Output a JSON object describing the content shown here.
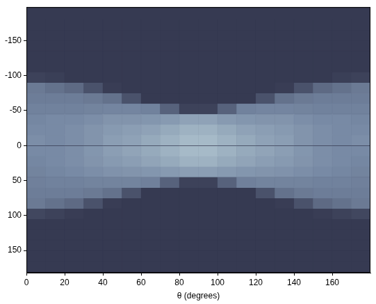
{
  "chart_data": {
    "type": "heatmap",
    "xlabel": "θ (degrees)",
    "xlim": [
      0,
      180
    ],
    "ylim": [
      182,
      -198
    ],
    "xticks": [
      0,
      20,
      40,
      60,
      80,
      100,
      120,
      140,
      160
    ],
    "yticks": [
      -150,
      -100,
      -50,
      0,
      50,
      100,
      150
    ],
    "grid": false,
    "zlim": [
      0,
      1
    ],
    "x_edges": [
      0,
      10,
      20,
      30,
      40,
      50,
      60,
      70,
      80,
      90,
      100,
      110,
      120,
      130,
      140,
      150,
      160,
      170,
      180
    ],
    "y_edges": [
      -180,
      -165,
      -150,
      -135,
      -120,
      -105,
      -90,
      -75,
      -60,
      -45,
      -30,
      -15,
      0,
      15,
      30,
      45,
      60,
      75,
      90,
      105,
      120,
      135,
      150,
      165,
      180
    ],
    "z": [
      [
        0,
        0,
        0,
        0,
        0,
        0,
        0,
        0,
        0,
        0,
        0,
        0,
        0,
        0,
        0,
        0,
        0,
        0
      ],
      [
        0,
        0,
        0,
        0,
        0,
        0,
        0,
        0,
        0,
        0,
        0,
        0,
        0,
        0,
        0,
        0,
        0,
        0
      ],
      [
        0,
        0,
        0,
        0,
        0,
        0,
        0,
        0,
        0,
        0,
        0,
        0,
        0,
        0,
        0,
        0,
        0,
        0
      ],
      [
        0,
        0,
        0,
        0,
        0,
        0,
        0,
        0,
        0,
        0,
        0,
        0,
        0,
        0,
        0,
        0,
        0,
        0
      ],
      [
        0,
        0,
        0,
        0,
        0,
        0,
        0,
        0,
        0,
        0,
        0,
        0,
        0,
        0,
        0,
        0,
        0,
        0
      ],
      [
        0.05,
        0.03,
        0,
        0,
        0,
        0,
        0,
        0,
        0,
        0,
        0,
        0,
        0,
        0,
        0,
        0,
        0.03,
        0.05
      ],
      [
        0.4,
        0.35,
        0.3,
        0.15,
        0.02,
        0,
        0,
        0,
        0,
        0,
        0,
        0,
        0,
        0.02,
        0.15,
        0.3,
        0.35,
        0.4
      ],
      [
        0.42,
        0.42,
        0.42,
        0.4,
        0.35,
        0.15,
        0,
        0,
        0,
        0,
        0,
        0,
        0.15,
        0.35,
        0.4,
        0.42,
        0.42,
        0.42
      ],
      [
        0.45,
        0.45,
        0.45,
        0.46,
        0.47,
        0.47,
        0.45,
        0.25,
        0.05,
        0.05,
        0.25,
        0.45,
        0.47,
        0.47,
        0.46,
        0.45,
        0.45,
        0.45
      ],
      [
        0.48,
        0.5,
        0.5,
        0.52,
        0.55,
        0.55,
        0.56,
        0.58,
        0.62,
        0.62,
        0.58,
        0.56,
        0.55,
        0.55,
        0.52,
        0.5,
        0.5,
        0.48
      ],
      [
        0.5,
        0.5,
        0.52,
        0.55,
        0.58,
        0.6,
        0.62,
        0.66,
        0.7,
        0.7,
        0.66,
        0.62,
        0.6,
        0.58,
        0.55,
        0.52,
        0.5,
        0.5
      ],
      [
        0.52,
        0.5,
        0.52,
        0.55,
        0.6,
        0.62,
        0.66,
        0.7,
        0.74,
        0.74,
        0.7,
        0.66,
        0.62,
        0.6,
        0.55,
        0.52,
        0.5,
        0.52
      ],
      [
        0.5,
        0.5,
        0.52,
        0.56,
        0.6,
        0.63,
        0.66,
        0.7,
        0.74,
        0.74,
        0.7,
        0.66,
        0.63,
        0.6,
        0.56,
        0.52,
        0.5,
        0.5
      ],
      [
        0.48,
        0.5,
        0.52,
        0.55,
        0.58,
        0.6,
        0.63,
        0.66,
        0.7,
        0.7,
        0.66,
        0.63,
        0.6,
        0.58,
        0.55,
        0.52,
        0.5,
        0.48
      ],
      [
        0.46,
        0.48,
        0.5,
        0.52,
        0.54,
        0.55,
        0.56,
        0.58,
        0.6,
        0.6,
        0.58,
        0.56,
        0.55,
        0.54,
        0.52,
        0.5,
        0.48,
        0.46
      ],
      [
        0.44,
        0.45,
        0.45,
        0.46,
        0.46,
        0.46,
        0.44,
        0.25,
        0.05,
        0.05,
        0.25,
        0.44,
        0.46,
        0.46,
        0.46,
        0.45,
        0.45,
        0.44
      ],
      [
        0.42,
        0.42,
        0.42,
        0.4,
        0.35,
        0.15,
        0,
        0,
        0,
        0,
        0,
        0,
        0.15,
        0.35,
        0.4,
        0.42,
        0.42,
        0.42
      ],
      [
        0.4,
        0.35,
        0.3,
        0.15,
        0.02,
        0,
        0,
        0,
        0,
        0,
        0,
        0,
        0,
        0.02,
        0.15,
        0.3,
        0.35,
        0.4
      ],
      [
        0.08,
        0.05,
        0.02,
        0,
        0,
        0,
        0,
        0,
        0,
        0,
        0,
        0,
        0,
        0,
        0,
        0.02,
        0.05,
        0.08
      ],
      [
        0,
        0,
        0,
        0,
        0,
        0,
        0,
        0,
        0,
        0,
        0,
        0,
        0,
        0,
        0,
        0,
        0,
        0
      ],
      [
        0,
        0,
        0,
        0,
        0,
        0,
        0,
        0,
        0,
        0,
        0,
        0,
        0,
        0,
        0,
        0,
        0,
        0
      ],
      [
        0,
        0,
        0,
        0,
        0,
        0,
        0,
        0,
        0,
        0,
        0,
        0,
        0,
        0,
        0,
        0,
        0,
        0
      ],
      [
        0,
        0,
        0,
        0,
        0,
        0,
        0,
        0,
        0,
        0,
        0,
        0,
        0,
        0,
        0,
        0,
        0,
        0
      ],
      [
        0,
        0,
        0,
        0,
        0,
        0,
        0,
        0,
        0,
        0,
        0,
        0,
        0,
        0,
        0,
        0,
        0,
        0
      ]
    ]
  }
}
